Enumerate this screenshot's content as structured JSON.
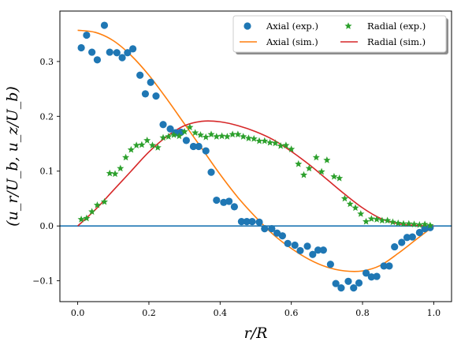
{
  "chart_data": {
    "type": "scatter",
    "xlabel": "r/R",
    "ylabel": "(u_r/U_b, u_z/U_b)",
    "xlim": [
      -0.05,
      1.05
    ],
    "ylim": [
      -0.138,
      0.392
    ],
    "x_ticks": [
      "0.0",
      "0.2",
      "0.4",
      "0.6",
      "0.8",
      "1.0"
    ],
    "y_ticks": [
      "−0.1",
      "0.0",
      "0.1",
      "0.2",
      "0.3"
    ],
    "grid": false,
    "legend_position": "top-right",
    "reference_line_y": 0,
    "colors": {
      "axial_exp": "#1f77b4",
      "axial_sim": "#ff7f0e",
      "radial_exp": "#2ca02c",
      "radial_sim": "#d62728",
      "zero_line": "#1f77b4"
    },
    "legend": [
      {
        "label": "Axial (exp.)",
        "kind": "marker-circle",
        "color": "#1f77b4"
      },
      {
        "label": "Radial (exp.)",
        "kind": "marker-star",
        "color": "#2ca02c"
      },
      {
        "label": "Axial (sim.)",
        "kind": "line",
        "color": "#ff7f0e"
      },
      {
        "label": "Radial (sim.)",
        "kind": "line",
        "color": "#d62728"
      }
    ],
    "series": [
      {
        "name": "Axial (exp.)",
        "kind": "scatter",
        "marker": "circle",
        "color": "#1f77b4",
        "x": [
          0.01,
          0.025,
          0.04,
          0.055,
          0.075,
          0.09,
          0.11,
          0.125,
          0.14,
          0.155,
          0.175,
          0.19,
          0.205,
          0.22,
          0.24,
          0.26,
          0.275,
          0.29,
          0.305,
          0.325,
          0.34,
          0.36,
          0.375,
          0.39,
          0.41,
          0.425,
          0.44,
          0.46,
          0.475,
          0.49,
          0.51,
          0.525,
          0.545,
          0.56,
          0.575,
          0.59,
          0.61,
          0.625,
          0.645,
          0.66,
          0.675,
          0.69,
          0.71,
          0.725,
          0.74,
          0.76,
          0.775,
          0.79,
          0.81,
          0.825,
          0.84,
          0.86,
          0.875,
          0.89,
          0.91,
          0.925,
          0.94,
          0.96,
          0.975,
          0.99
        ],
        "y": [
          0.325,
          0.348,
          0.317,
          0.303,
          0.366,
          0.317,
          0.316,
          0.307,
          0.316,
          0.323,
          0.275,
          0.241,
          0.262,
          0.237,
          0.185,
          0.177,
          0.17,
          0.171,
          0.156,
          0.145,
          0.145,
          0.137,
          0.098,
          0.047,
          0.043,
          0.045,
          0.035,
          0.008,
          0.008,
          0.008,
          0.007,
          -0.005,
          -0.005,
          -0.013,
          -0.018,
          -0.032,
          -0.035,
          -0.045,
          -0.037,
          -0.052,
          -0.044,
          -0.044,
          -0.07,
          -0.105,
          -0.113,
          -0.101,
          -0.113,
          -0.104,
          -0.086,
          -0.093,
          -0.092,
          -0.073,
          -0.073,
          -0.038,
          -0.03,
          -0.021,
          -0.02,
          -0.012,
          -0.005,
          -0.003
        ]
      },
      {
        "name": "Radial (exp.)",
        "kind": "scatter",
        "marker": "star",
        "color": "#2ca02c",
        "x": [
          0.01,
          0.025,
          0.04,
          0.055,
          0.075,
          0.09,
          0.105,
          0.12,
          0.135,
          0.15,
          0.165,
          0.18,
          0.195,
          0.21,
          0.225,
          0.24,
          0.255,
          0.27,
          0.285,
          0.3,
          0.315,
          0.33,
          0.345,
          0.36,
          0.375,
          0.39,
          0.405,
          0.42,
          0.435,
          0.45,
          0.465,
          0.48,
          0.495,
          0.51,
          0.525,
          0.54,
          0.555,
          0.57,
          0.585,
          0.6,
          0.62,
          0.635,
          0.65,
          0.67,
          0.685,
          0.7,
          0.72,
          0.735,
          0.75,
          0.765,
          0.78,
          0.795,
          0.81,
          0.825,
          0.84,
          0.855,
          0.87,
          0.885,
          0.9,
          0.915,
          0.93,
          0.945,
          0.96,
          0.975,
          0.99
        ],
        "y": [
          0.012,
          0.014,
          0.026,
          0.038,
          0.044,
          0.096,
          0.095,
          0.105,
          0.125,
          0.139,
          0.147,
          0.148,
          0.156,
          0.147,
          0.143,
          0.161,
          0.163,
          0.166,
          0.164,
          0.172,
          0.18,
          0.17,
          0.166,
          0.162,
          0.167,
          0.163,
          0.164,
          0.163,
          0.167,
          0.167,
          0.163,
          0.16,
          0.159,
          0.155,
          0.155,
          0.152,
          0.151,
          0.146,
          0.147,
          0.14,
          0.113,
          0.093,
          0.105,
          0.125,
          0.099,
          0.12,
          0.09,
          0.087,
          0.05,
          0.04,
          0.033,
          0.022,
          0.008,
          0.013,
          0.012,
          0.01,
          0.01,
          0.007,
          0.005,
          0.004,
          0.004,
          0.003,
          0.002,
          0.003,
          0.001
        ]
      },
      {
        "name": "Axial (sim.)",
        "kind": "line",
        "color": "#ff7f0e",
        "x": [
          0,
          0.05,
          0.1,
          0.15,
          0.2,
          0.25,
          0.3,
          0.35,
          0.4,
          0.45,
          0.5,
          0.55,
          0.6,
          0.65,
          0.7,
          0.75,
          0.8,
          0.85,
          0.9,
          0.95,
          1.0
        ],
        "y": [
          0.357,
          0.353,
          0.338,
          0.311,
          0.275,
          0.232,
          0.186,
          0.14,
          0.094,
          0.052,
          0.016,
          -0.016,
          -0.041,
          -0.061,
          -0.075,
          -0.082,
          -0.082,
          -0.072,
          -0.05,
          -0.025,
          0.0
        ]
      },
      {
        "name": "Radial (sim.)",
        "kind": "line",
        "color": "#d62728",
        "x": [
          0,
          0.05,
          0.1,
          0.15,
          0.2,
          0.25,
          0.3,
          0.35,
          0.4,
          0.45,
          0.5,
          0.55,
          0.6,
          0.65,
          0.7,
          0.75,
          0.8,
          0.85,
          0.9,
          0.95,
          1.0
        ],
        "y": [
          0.0,
          0.03,
          0.065,
          0.1,
          0.135,
          0.163,
          0.183,
          0.191,
          0.19,
          0.183,
          0.172,
          0.157,
          0.136,
          0.112,
          0.085,
          0.058,
          0.033,
          0.014,
          0.004,
          0.001,
          0.0
        ]
      }
    ]
  }
}
